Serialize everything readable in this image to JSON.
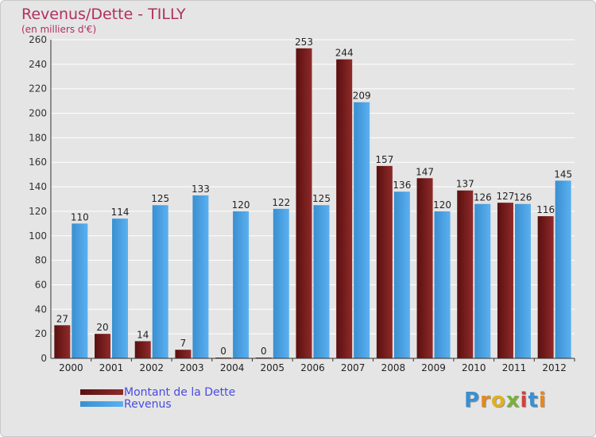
{
  "chart_data": {
    "type": "bar",
    "title": "Revenus/Dette - TILLY",
    "subtitle": "(en milliers d'€)",
    "categories": [
      "2000",
      "2001",
      "2002",
      "2003",
      "2004",
      "2005",
      "2006",
      "2007",
      "2008",
      "2009",
      "2010",
      "2011",
      "2012"
    ],
    "series": [
      {
        "name": "Montant de la Dette",
        "color": "#7a1a1a",
        "values": [
          27,
          20,
          14,
          7,
          0,
          0,
          253,
          244,
          157,
          147,
          137,
          127,
          116
        ]
      },
      {
        "name": "Revenus",
        "color": "#4aa0e0",
        "values": [
          110,
          114,
          125,
          133,
          120,
          122,
          125,
          209,
          136,
          120,
          126,
          126,
          145
        ]
      }
    ],
    "ylim": [
      0,
      260
    ],
    "yticks": [
      0,
      20,
      40,
      60,
      80,
      100,
      120,
      140,
      160,
      180,
      200,
      220,
      240,
      260
    ],
    "grid": true,
    "legend": "bottom-left"
  },
  "logo": {
    "letters": [
      {
        "ch": "P",
        "color": "#3a8fd0"
      },
      {
        "ch": "r",
        "color": "#e08a20"
      },
      {
        "ch": "o",
        "color": "#e0b020"
      },
      {
        "ch": "x",
        "color": "#7ab03a"
      },
      {
        "ch": "i",
        "color": "#d04040"
      },
      {
        "ch": "t",
        "color": "#3a8fd0"
      },
      {
        "ch": "i",
        "color": "#e08a20"
      }
    ]
  }
}
